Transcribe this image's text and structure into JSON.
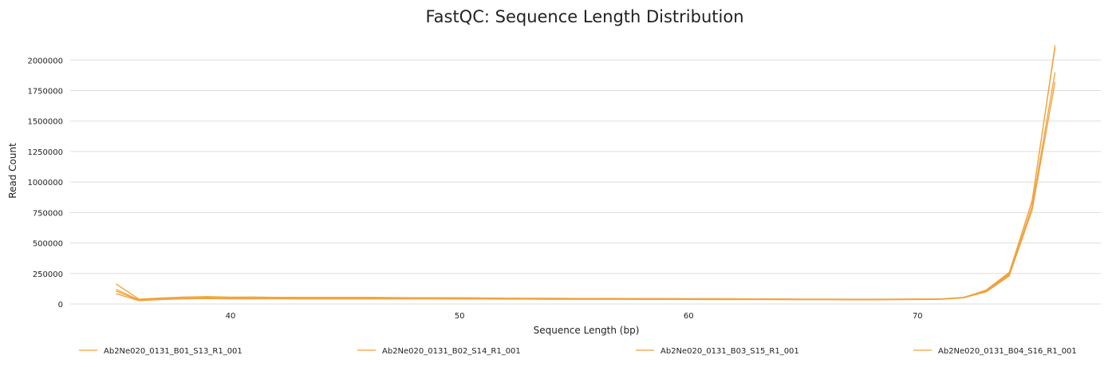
{
  "chart_data": {
    "type": "line",
    "title": "FastQC: Sequence Length Distribution",
    "xlabel": "Sequence Length (bp)",
    "ylabel": "Read Count",
    "xlim": [
      33.0,
      78.0
    ],
    "ylim": [
      0,
      2100000
    ],
    "x_ticks": [
      40,
      50,
      60,
      70
    ],
    "y_ticks": [
      0,
      250000,
      500000,
      750000,
      1000000,
      1250000,
      1500000,
      1750000,
      2000000
    ],
    "grid": "horizontal",
    "legend_position": "bottom",
    "x": [
      35,
      36,
      37,
      38,
      39,
      40,
      41,
      42,
      43,
      44,
      45,
      46,
      47,
      48,
      49,
      50,
      51,
      52,
      53,
      54,
      55,
      56,
      57,
      58,
      59,
      60,
      61,
      62,
      63,
      64,
      65,
      66,
      67,
      68,
      69,
      70,
      71,
      72,
      73,
      74,
      75,
      76
    ],
    "series": [
      {
        "name": "Ab2Ne020_0131_B01_S13_R1_001",
        "color": "#f5a33a",
        "values": [
          165000,
          40000,
          50000,
          57000,
          60000,
          56000,
          57000,
          55000,
          55000,
          54000,
          54000,
          54000,
          53000,
          52000,
          52000,
          51000,
          50000,
          48000,
          47000,
          47000,
          46000,
          46000,
          46000,
          45000,
          45000,
          44000,
          44000,
          43000,
          42000,
          41000,
          40000,
          40000,
          39000,
          39000,
          40000,
          41000,
          42000,
          55000,
          110000,
          250000,
          850000,
          2100000
        ]
      },
      {
        "name": "Ab2Ne020_0131_B02_S14_R1_001",
        "color": "#f0a13c",
        "values": [
          120000,
          34000,
          44000,
          50000,
          52000,
          50000,
          50000,
          49000,
          48000,
          48000,
          48000,
          48000,
          48000,
          47000,
          47000,
          46000,
          45000,
          44000,
          43000,
          43000,
          43000,
          43000,
          42000,
          42000,
          42000,
          41000,
          41000,
          40000,
          40000,
          39000,
          38000,
          38000,
          37000,
          37000,
          38000,
          39000,
          41000,
          53000,
          105000,
          240000,
          800000,
          1900000
        ]
      },
      {
        "name": "Ab2Ne020_0131_B03_S15_R1_001",
        "color": "#eea03f",
        "values": [
          85000,
          27000,
          36000,
          42000,
          44000,
          42000,
          42000,
          42000,
          41000,
          41000,
          41000,
          41000,
          41000,
          41000,
          41000,
          40000,
          40000,
          39000,
          39000,
          38000,
          38000,
          38000,
          38000,
          37000,
          37000,
          37000,
          36000,
          36000,
          36000,
          35000,
          35000,
          35000,
          34000,
          34000,
          35000,
          36000,
          38000,
          50000,
          100000,
          230000,
          770000,
          1820000
        ]
      },
      {
        "name": "Ab2Ne020_0131_B04_S16_R1_001",
        "color": "#f2a540",
        "values": [
          105000,
          31000,
          40000,
          46000,
          48000,
          46000,
          46000,
          45000,
          45000,
          45000,
          45000,
          45000,
          44000,
          44000,
          44000,
          43000,
          43000,
          42000,
          41000,
          41000,
          41000,
          41000,
          40000,
          40000,
          40000,
          39000,
          39000,
          38000,
          38000,
          37000,
          37000,
          37000,
          36000,
          36000,
          37000,
          38000,
          40000,
          52000,
          115000,
          260000,
          840000,
          2120000
        ]
      }
    ]
  }
}
